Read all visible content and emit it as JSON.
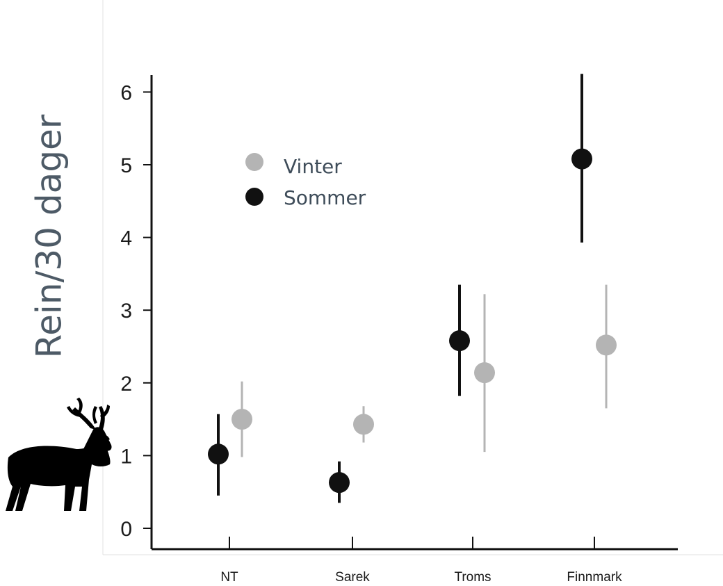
{
  "chart_data": {
    "type": "scatter",
    "ylabel": "Rein/30 dager",
    "ylim": [
      0,
      6.3
    ],
    "yticks": [
      0,
      1,
      2,
      3,
      4,
      5,
      6
    ],
    "categories": [
      "NT",
      "Sarek",
      "Troms",
      "Finnmark"
    ],
    "legend": {
      "placement": "top-left"
    },
    "series": [
      {
        "name": "Vinter",
        "color": "#b4b4b4",
        "values": [
          1.5,
          1.43,
          2.14,
          2.52
        ],
        "lower": [
          0.98,
          1.18,
          1.05,
          1.65
        ],
        "upper": [
          2.02,
          1.68,
          3.22,
          3.35
        ]
      },
      {
        "name": "Sommer",
        "color": "#111111",
        "values": [
          1.02,
          0.63,
          2.58,
          5.08
        ],
        "lower": [
          0.45,
          0.35,
          1.82,
          3.93
        ],
        "upper": [
          1.57,
          0.92,
          3.35,
          6.25
        ]
      }
    ],
    "grid": false
  },
  "icon": "reindeer-silhouette-icon"
}
